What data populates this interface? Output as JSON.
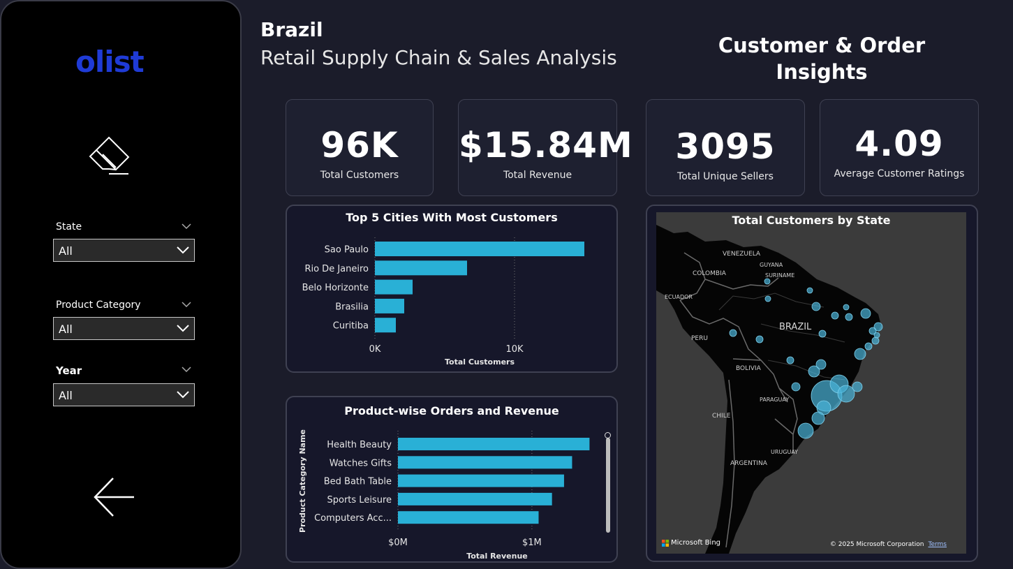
{
  "sidebar": {
    "logo": "olist",
    "filters": [
      {
        "label": "State",
        "value": "All"
      },
      {
        "label": "Product Category",
        "value": "All"
      },
      {
        "label": "Year",
        "value": "All"
      }
    ]
  },
  "header": {
    "title": "Brazil",
    "subtitle": "Retail Supply Chain & Sales Analysis",
    "page_title": "Customer & Order Insights"
  },
  "kpis": [
    {
      "value": "96K",
      "label": "Total Customers"
    },
    {
      "value": "$15.84M",
      "label": "Total Revenue"
    },
    {
      "value": "3095",
      "label": "Total Unique Sellers"
    },
    {
      "value": "4.09",
      "label": "Average Customer Ratings"
    }
  ],
  "colors": {
    "bar": "#29b0d6",
    "map_bubble": "#4ab3d9",
    "logo": "#1f3bd6"
  },
  "chart_data": [
    {
      "type": "bar",
      "orientation": "horizontal",
      "title": "Top 5 Cities With Most Customers",
      "categories": [
        "Sao Paulo",
        "Rio De Janeiro",
        "Belo Horizonte",
        "Brasilia",
        "Curitiba"
      ],
      "values": [
        15000,
        6600,
        2700,
        2100,
        1500
      ],
      "xlabel": "Total Customers",
      "xticks": [
        "0K",
        "10K"
      ],
      "xlim": [
        0,
        15800
      ]
    },
    {
      "type": "bar",
      "orientation": "horizontal",
      "title": "Product-wise Orders and Revenue",
      "categories": [
        "Health Beauty",
        "Watches Gifts",
        "Bed Bath Table",
        "Sports Leisure",
        "Computers Acc..."
      ],
      "values": [
        1430000,
        1300000,
        1240000,
        1150000,
        1050000
      ],
      "xlabel": "Total Revenue",
      "ylabel": "Product Category Name",
      "xticks": [
        "$0M",
        "$1M"
      ],
      "xlim": [
        0,
        1480000
      ]
    }
  ],
  "map": {
    "title": "Total Customers by State",
    "labels": [
      "VENEZUELA",
      "GUYANA",
      "SURINAME",
      "COLOMBIA",
      "ECUADOR",
      "BRAZIL",
      "PERU",
      "BOLIVIA",
      "PARAGUAY",
      "CHILE",
      "URUGUAY",
      "ARGENTINA"
    ],
    "attribution": "Microsoft Bing",
    "copyright": "© 2025 Microsoft Corporation",
    "terms": "Terms"
  }
}
